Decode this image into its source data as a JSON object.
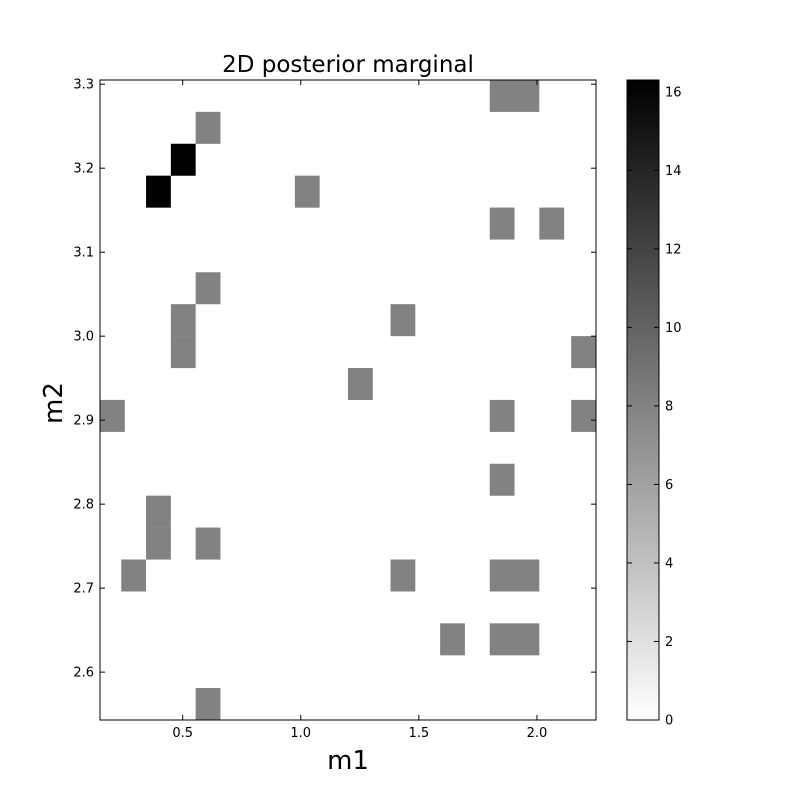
{
  "chart_data": {
    "type": "heatmap",
    "title": "2D posterior marginal",
    "xlabel": "m1",
    "ylabel": "m2",
    "xlim": [
      0.15,
      2.25
    ],
    "ylim": [
      2.543,
      3.305
    ],
    "x_ticks": [
      {
        "value": 0.5,
        "label": "0.5"
      },
      {
        "value": 1.0,
        "label": "1.0"
      },
      {
        "value": 1.5,
        "label": "1.5"
      },
      {
        "value": 2.0,
        "label": "2.0"
      }
    ],
    "y_ticks": [
      {
        "value": 2.6,
        "label": "2.6"
      },
      {
        "value": 2.7,
        "label": "2.7"
      },
      {
        "value": 2.8,
        "label": "2.8"
      },
      {
        "value": 2.9,
        "label": "2.9"
      },
      {
        "value": 3.0,
        "label": "3.0"
      },
      {
        "value": 3.1,
        "label": "3.1"
      },
      {
        "value": 3.2,
        "label": "3.2"
      },
      {
        "value": 3.3,
        "label": "3.3"
      }
    ],
    "bin_width_x": 0.105,
    "bin_height_y": 0.0381,
    "cells": [
      {
        "x0": 1.8,
        "y0": 3.267,
        "count": 8
      },
      {
        "x0": 1.905,
        "y0": 3.267,
        "count": 8
      },
      {
        "x0": 0.555,
        "y0": 3.229,
        "count": 8
      },
      {
        "x0": 0.45,
        "y0": 3.191,
        "count": 16.3
      },
      {
        "x0": 0.345,
        "y0": 3.153,
        "count": 16.3
      },
      {
        "x0": 0.975,
        "y0": 3.153,
        "count": 8
      },
      {
        "x0": 1.8,
        "y0": 3.115,
        "count": 8
      },
      {
        "x0": 2.01,
        "y0": 3.115,
        "count": 8
      },
      {
        "x0": 0.555,
        "y0": 3.038,
        "count": 8
      },
      {
        "x0": 0.45,
        "y0": 3.0,
        "count": 8
      },
      {
        "x0": 1.38,
        "y0": 3.0,
        "count": 8
      },
      {
        "x0": 0.45,
        "y0": 2.962,
        "count": 8
      },
      {
        "x0": 2.145,
        "y0": 2.962,
        "count": 8
      },
      {
        "x0": 1.2,
        "y0": 2.924,
        "count": 8
      },
      {
        "x0": 0.15,
        "y0": 2.886,
        "count": 8
      },
      {
        "x0": 1.8,
        "y0": 2.886,
        "count": 8
      },
      {
        "x0": 2.145,
        "y0": 2.886,
        "count": 8
      },
      {
        "x0": 1.8,
        "y0": 2.81,
        "count": 8
      },
      {
        "x0": 0.345,
        "y0": 2.772,
        "count": 8
      },
      {
        "x0": 0.345,
        "y0": 2.734,
        "count": 8
      },
      {
        "x0": 0.555,
        "y0": 2.734,
        "count": 8
      },
      {
        "x0": 0.24,
        "y0": 2.696,
        "count": 8
      },
      {
        "x0": 1.38,
        "y0": 2.696,
        "count": 8
      },
      {
        "x0": 1.8,
        "y0": 2.696,
        "count": 8
      },
      {
        "x0": 1.905,
        "y0": 2.696,
        "count": 8
      },
      {
        "x0": 1.59,
        "y0": 2.62,
        "count": 8
      },
      {
        "x0": 1.8,
        "y0": 2.62,
        "count": 8
      },
      {
        "x0": 1.905,
        "y0": 2.62,
        "count": 8
      },
      {
        "x0": 0.555,
        "y0": 2.543,
        "count": 8
      }
    ],
    "colorbar": {
      "min": 0,
      "max": 16.3,
      "ticks": [
        {
          "value": 0,
          "label": "0"
        },
        {
          "value": 2,
          "label": "2"
        },
        {
          "value": 4,
          "label": "4"
        },
        {
          "value": 6,
          "label": "6"
        },
        {
          "value": 8,
          "label": "8"
        },
        {
          "value": 10,
          "label": "10"
        },
        {
          "value": 12,
          "label": "12"
        },
        {
          "value": 14,
          "label": "14"
        },
        {
          "value": 16,
          "label": "16"
        }
      ],
      "colormap": "gray_r"
    },
    "grid": false,
    "colors": {
      "low": "#ffffff",
      "high": "#000000",
      "axis": "#000000"
    }
  }
}
